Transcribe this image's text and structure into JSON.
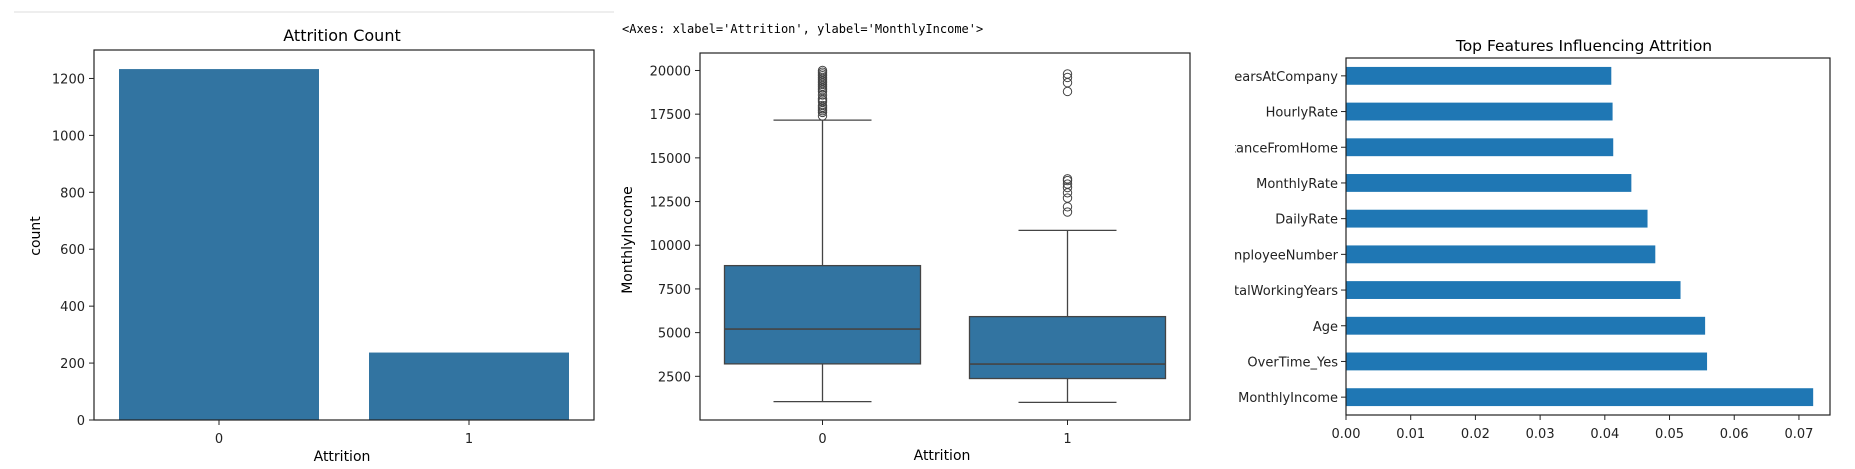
{
  "page": {
    "axes_repr": "<Axes: xlabel='Attrition', ylabel='MonthlyIncome'>"
  },
  "colors": {
    "bar": "#3274a1",
    "barh": "#1f77b4",
    "axis": "#222222",
    "whisker": "#444444"
  },
  "chart_data": [
    {
      "type": "bar",
      "title": "Attrition Count",
      "xlabel": "Attrition",
      "ylabel": "count",
      "categories": [
        "0",
        "1"
      ],
      "values": [
        1233,
        237
      ],
      "ylim": [
        0,
        1300
      ],
      "yticks": [
        0,
        200,
        400,
        600,
        800,
        1000,
        1200
      ],
      "grid": false
    },
    {
      "type": "box",
      "title": "",
      "xlabel": "Attrition",
      "ylabel": "MonthlyIncome",
      "categories": [
        "0",
        "1"
      ],
      "ylim": [
        0,
        21000
      ],
      "yticks": [
        2500,
        5000,
        7500,
        10000,
        12500,
        15000,
        17500,
        20000
      ],
      "boxes": [
        {
          "category": "0",
          "whisker_low": 1051,
          "q1": 3211,
          "median": 5204,
          "q3": 8834,
          "whisker_high": 17160,
          "outliers": [
            17400,
            17600,
            17700,
            17800,
            17900,
            18000,
            18200,
            18300,
            18400,
            18600,
            18800,
            18900,
            19000,
            19100,
            19200,
            19300,
            19400,
            19500,
            19600,
            19700,
            19800,
            19900,
            19999
          ]
        },
        {
          "category": "1",
          "whisker_low": 1009,
          "q1": 2373,
          "median": 3202,
          "q3": 5916,
          "whisker_high": 10850,
          "outliers": [
            11900,
            12200,
            12700,
            13000,
            13300,
            13500,
            13700,
            13800,
            18800,
            19300,
            19600,
            19800
          ]
        }
      ],
      "grid": false
    },
    {
      "type": "barh",
      "title": "Top Features Influencing Attrition",
      "xlabel": "",
      "ylabel": "",
      "categories": [
        "MonthlyIncome",
        "OverTime_Yes",
        "Age",
        "TotalWorkingYears",
        "EmployeeNumber",
        "DailyRate",
        "MonthlyRate",
        "DistanceFromHome",
        "HourlyRate",
        "YearsAtCompany"
      ],
      "tick_labels_visible": [
        "MonthlyIncome",
        "OverTime_Yes",
        "Age",
        "talWorkingYears",
        "nployeeNumber",
        "DailyRate",
        "MonthlyRate",
        "tanceFromHome",
        "HourlyRate",
        "earsAtCompany"
      ],
      "values": [
        0.0722,
        0.0558,
        0.0555,
        0.0517,
        0.0478,
        0.0466,
        0.0441,
        0.0413,
        0.0412,
        0.041
      ],
      "xlim": [
        0,
        0.0748
      ],
      "xticks": [
        0.0,
        0.01,
        0.02,
        0.03,
        0.04,
        0.05,
        0.06,
        0.07
      ],
      "xtick_labels": [
        "0.00",
        "0.01",
        "0.02",
        "0.03",
        "0.04",
        "0.05",
        "0.06",
        "0.07"
      ],
      "grid": false
    }
  ]
}
